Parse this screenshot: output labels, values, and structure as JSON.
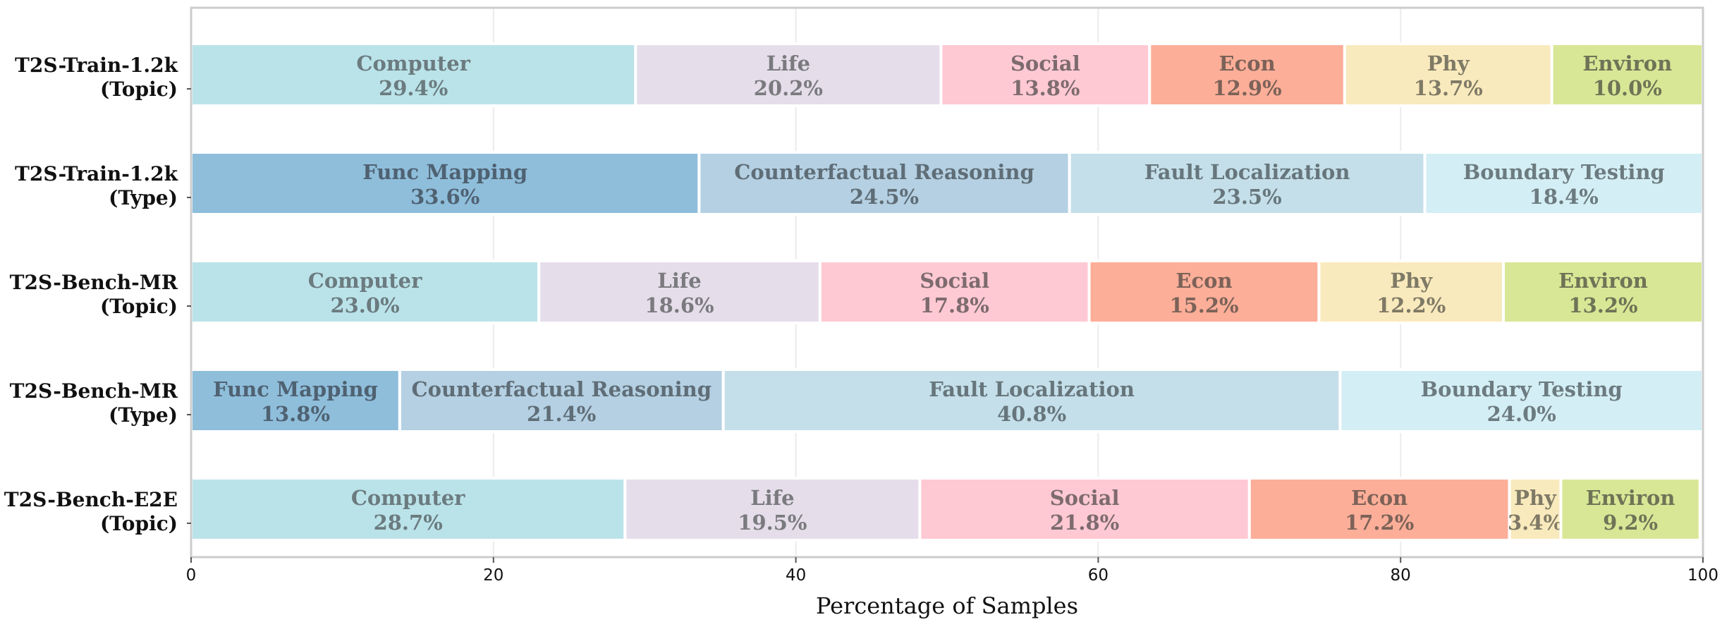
{
  "chart_data": {
    "type": "bar",
    "orientation": "horizontal",
    "stacked": true,
    "xlabel": "Percentage of Samples",
    "xlim": [
      0,
      100
    ],
    "xticks": [
      "0",
      "20",
      "40",
      "60",
      "80",
      "100"
    ],
    "grid": true,
    "rows": [
      {
        "label_line1": "T2S-Train-1.2k",
        "label_line2": "(Topic)",
        "segments": [
          {
            "name": "Computer",
            "value": 29.4,
            "pct": "29.4%",
            "color": "#bae3e9",
            "text_color": "#6b7b7f"
          },
          {
            "name": "Life",
            "value": 20.2,
            "pct": "20.2%",
            "color": "#e5deea",
            "text_color": "#7a7a7f"
          },
          {
            "name": "Social",
            "value": 13.8,
            "pct": "13.8%",
            "color": "#ffc9d3",
            "text_color": "#7d6b6f"
          },
          {
            "name": "Econ",
            "value": 12.9,
            "pct": "12.9%",
            "color": "#fcae98",
            "text_color": "#7c6258"
          },
          {
            "name": "Phy",
            "value": 13.7,
            "pct": "13.7%",
            "color": "#f9eabd",
            "text_color": "#7f7a66"
          },
          {
            "name": "Environ",
            "value": 10.0,
            "pct": "10.0%",
            "color": "#d8e796",
            "text_color": "#6f7356"
          }
        ]
      },
      {
        "label_line1": "T2S-Train-1.2k",
        "label_line2": "(Type)",
        "segments": [
          {
            "name": "Func Mapping",
            "value": 33.6,
            "pct": "33.6%",
            "color": "#8fbedb",
            "text_color": "#4f6272"
          },
          {
            "name": "Counterfactual Reasoning",
            "value": 24.5,
            "pct": "24.5%",
            "color": "#b4d0e2",
            "text_color": "#5f6d77"
          },
          {
            "name": "Fault Localization",
            "value": 23.5,
            "pct": "23.5%",
            "color": "#c4dfe9",
            "text_color": "#67767c"
          },
          {
            "name": "Boundary Testing",
            "value": 18.4,
            "pct": "18.4%",
            "color": "#d3eef4",
            "text_color": "#6c7b80"
          }
        ]
      },
      {
        "label_line1": "T2S-Bench-MR",
        "label_line2": "(Topic)",
        "segments": [
          {
            "name": "Computer",
            "value": 23.0,
            "pct": "23.0%",
            "color": "#bae3e9",
            "text_color": "#6b7b7f"
          },
          {
            "name": "Life",
            "value": 18.6,
            "pct": "18.6%",
            "color": "#e5deea",
            "text_color": "#7a7a7f"
          },
          {
            "name": "Social",
            "value": 17.8,
            "pct": "17.8%",
            "color": "#ffc9d3",
            "text_color": "#7d6b6f"
          },
          {
            "name": "Econ",
            "value": 15.2,
            "pct": "15.2%",
            "color": "#fcae98",
            "text_color": "#7c6258"
          },
          {
            "name": "Phy",
            "value": 12.2,
            "pct": "12.2%",
            "color": "#f9eabd",
            "text_color": "#7f7a66"
          },
          {
            "name": "Environ",
            "value": 13.2,
            "pct": "13.2%",
            "color": "#d8e796",
            "text_color": "#6f7356"
          }
        ]
      },
      {
        "label_line1": "T2S-Bench-MR",
        "label_line2": "(Type)",
        "segments": [
          {
            "name": "Func Mapping",
            "value": 13.8,
            "pct": "13.8%",
            "color": "#8fbedb",
            "text_color": "#4f6272"
          },
          {
            "name": "Counterfactual Reasoning",
            "value": 21.4,
            "pct": "21.4%",
            "color": "#b4d0e2",
            "text_color": "#5f6d77"
          },
          {
            "name": "Fault Localization",
            "value": 40.8,
            "pct": "40.8%",
            "color": "#c4dfe9",
            "text_color": "#67767c"
          },
          {
            "name": "Boundary Testing",
            "value": 24.0,
            "pct": "24.0%",
            "color": "#d3eef4",
            "text_color": "#6c7b80"
          }
        ]
      },
      {
        "label_line1": "T2S-Bench-E2E",
        "label_line2": "(Topic)",
        "segments": [
          {
            "name": "Computer",
            "value": 28.7,
            "pct": "28.7%",
            "color": "#bae3e9",
            "text_color": "#6b7b7f"
          },
          {
            "name": "Life",
            "value": 19.5,
            "pct": "19.5%",
            "color": "#e5deea",
            "text_color": "#7a7a7f"
          },
          {
            "name": "Social",
            "value": 21.8,
            "pct": "21.8%",
            "color": "#ffc9d3",
            "text_color": "#7d6b6f"
          },
          {
            "name": "Econ",
            "value": 17.2,
            "pct": "17.2%",
            "color": "#fcae98",
            "text_color": "#7c6258"
          },
          {
            "name": "Phy",
            "value": 3.4,
            "pct": "3.4%",
            "color": "#f9eabd",
            "text_color": "#7f7a66"
          },
          {
            "name": "Environ",
            "value": 9.2,
            "pct": "9.2%",
            "color": "#d8e796",
            "text_color": "#6f7356"
          }
        ]
      }
    ]
  }
}
